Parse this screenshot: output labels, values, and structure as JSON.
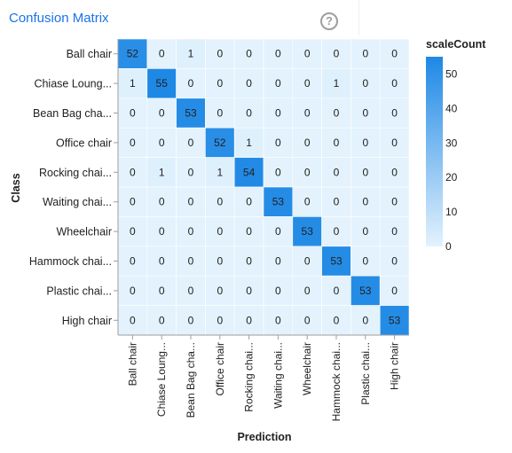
{
  "header": {
    "title": "Confusion Matrix",
    "help_icon": "help-circle-icon",
    "help_glyph": "?"
  },
  "chart_data": {
    "type": "heatmap",
    "title": "Confusion Matrix",
    "xlabel": "Prediction",
    "ylabel": "Class",
    "rows": [
      "Ball chair",
      "Chiase Loung...",
      "Bean Bag cha...",
      "Office chair",
      "Rocking chai...",
      "Waiting chai...",
      "Wheelchair",
      "Hammock chai...",
      "Plastic chai...",
      "High chair"
    ],
    "columns": [
      "Ball chair",
      "Chiase Loung...",
      "Bean Bag cha...",
      "Office chair",
      "Rocking chai...",
      "Waiting chai...",
      "Wheelchair",
      "Hammock chai...",
      "Plastic chai...",
      "High chair"
    ],
    "values": [
      [
        52,
        0,
        1,
        0,
        0,
        0,
        0,
        0,
        0,
        0
      ],
      [
        1,
        55,
        0,
        0,
        0,
        0,
        0,
        1,
        0,
        0
      ],
      [
        0,
        0,
        53,
        0,
        0,
        0,
        0,
        0,
        0,
        0
      ],
      [
        0,
        0,
        0,
        52,
        1,
        0,
        0,
        0,
        0,
        0
      ],
      [
        0,
        1,
        0,
        1,
        54,
        0,
        0,
        0,
        0,
        0
      ],
      [
        0,
        0,
        0,
        0,
        0,
        53,
        0,
        0,
        0,
        0
      ],
      [
        0,
        0,
        0,
        0,
        0,
        0,
        53,
        0,
        0,
        0
      ],
      [
        0,
        0,
        0,
        0,
        0,
        0,
        0,
        53,
        0,
        0
      ],
      [
        0,
        0,
        0,
        0,
        0,
        0,
        0,
        0,
        53,
        0
      ],
      [
        0,
        0,
        0,
        0,
        0,
        0,
        0,
        0,
        0,
        53
      ]
    ],
    "legend": {
      "title": "scaleCount",
      "ticks": [
        0,
        10,
        20,
        30,
        40,
        50
      ],
      "range": [
        0,
        55
      ],
      "placement": "right"
    },
    "colors": {
      "low": "#e3f2fd",
      "high": "#1e88e5",
      "grid": "#ffffff"
    }
  }
}
